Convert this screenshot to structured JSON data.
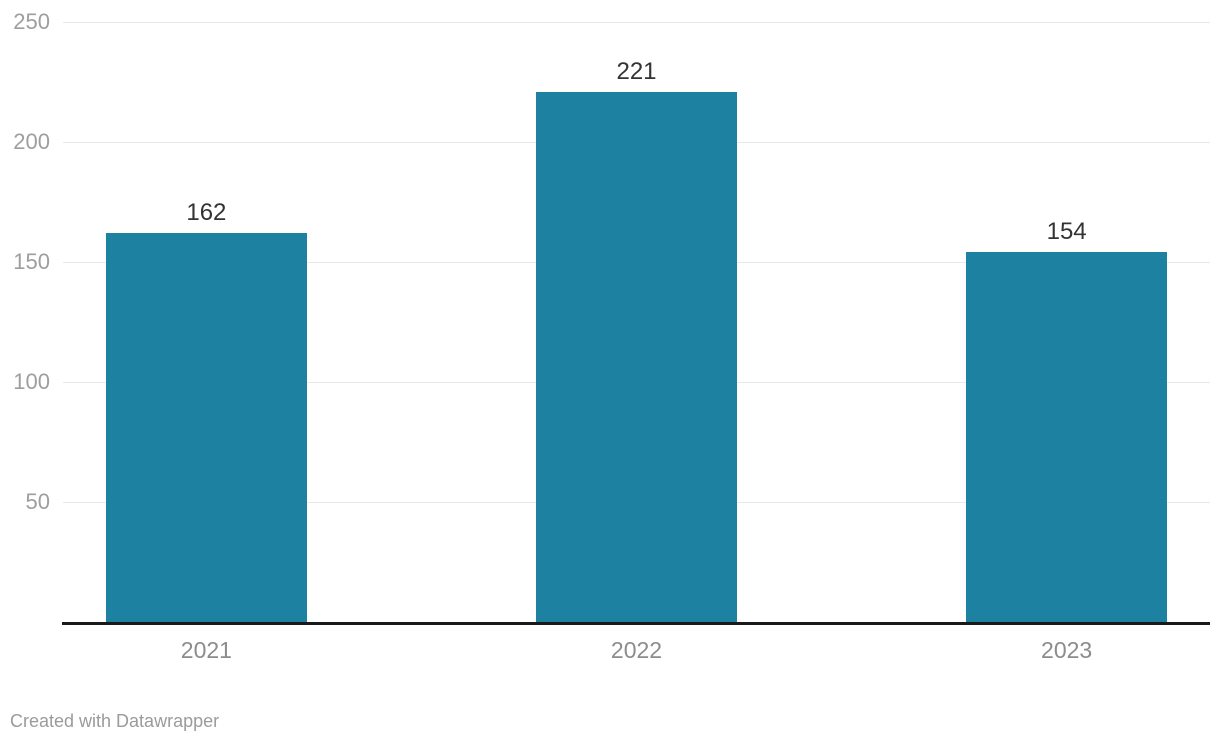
{
  "chart_data": {
    "type": "bar",
    "categories": [
      "2021",
      "2022",
      "2023"
    ],
    "values": [
      162,
      221,
      154
    ],
    "title": "",
    "xlabel": "",
    "ylabel": "",
    "ylim": [
      0,
      250
    ],
    "yticks": [
      50,
      100,
      150,
      200,
      250
    ],
    "grid": "horizontal",
    "legend": "none",
    "value_labels_shown": true
  },
  "colors": {
    "bar": "#1d81a2",
    "gridline": "#e8e8e8",
    "baseline": "#1a1a1a",
    "y_tick_label": "#9e9e9e",
    "x_tick_label": "#8c8c8c",
    "value_label": "#333333",
    "footer_text": "#9b9b9b",
    "background": "#ffffff"
  },
  "footer": {
    "credit": "Created with Datawrapper"
  }
}
